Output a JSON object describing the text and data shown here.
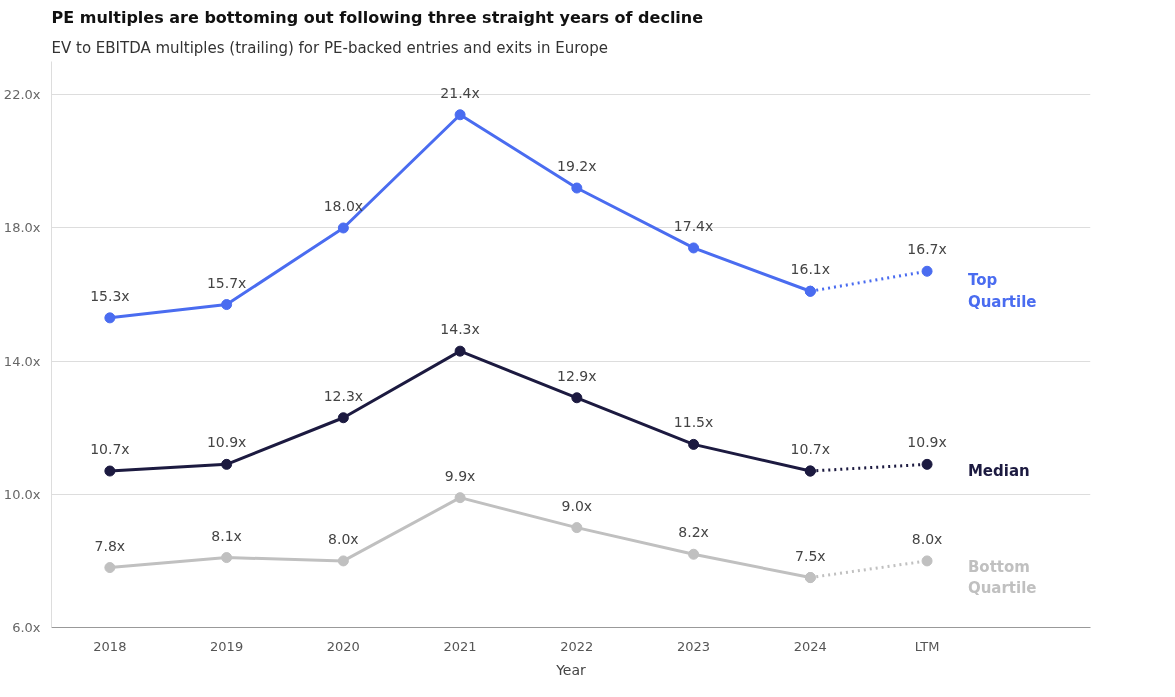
{
  "chart_data": {
    "type": "line",
    "title": "PE multiples are bottoming out following three straight years of decline",
    "subtitle": "EV to EBITDA multiples (trailing) for PE-backed entries and exits in Europe",
    "xlabel": "Year",
    "categories": [
      "2018",
      "2019",
      "2020",
      "2021",
      "2022",
      "2023",
      "2024",
      "LTM"
    ],
    "ylim": [
      6,
      23
    ],
    "yticks": [
      {
        "value": 6,
        "label": "6.0x"
      },
      {
        "value": 10,
        "label": "10.0x"
      },
      {
        "value": 14,
        "label": "14.0x"
      },
      {
        "value": 18,
        "label": "18.0x"
      },
      {
        "value": 22,
        "label": "22.0x"
      }
    ],
    "grid": "y",
    "legend": false,
    "marker": "circle",
    "series": [
      {
        "name": "Top Quartile",
        "color": "#4a6cf0",
        "line_style": "solid",
        "values": [
          15.3,
          15.7,
          18.0,
          21.4,
          19.2,
          17.4,
          16.1,
          null
        ],
        "value_labels": [
          "15.3x",
          "15.7x",
          "18.0x",
          "21.4x",
          "19.2x",
          "17.4x",
          "16.1x",
          null
        ]
      },
      {
        "color": "#4a6cf0",
        "line_style": "dotted",
        "values": [
          null,
          null,
          null,
          null,
          null,
          null,
          16.1,
          16.7
        ],
        "value_labels": [
          null,
          null,
          null,
          null,
          null,
          null,
          null,
          "16.7x"
        ]
      },
      {
        "name": "Median",
        "color": "#1c1a40",
        "line_style": "solid",
        "values": [
          10.7,
          10.9,
          12.3,
          14.3,
          12.9,
          11.5,
          10.7,
          null
        ],
        "value_labels": [
          "10.7x",
          "10.9x",
          "12.3x",
          "14.3x",
          "12.9x",
          "11.5x",
          "10.7x",
          null
        ]
      },
      {
        "color": "#1c1a40",
        "line_style": "dotted",
        "values": [
          null,
          null,
          null,
          null,
          null,
          null,
          10.7,
          10.9
        ],
        "value_labels": [
          null,
          null,
          null,
          null,
          null,
          null,
          null,
          "10.9x"
        ]
      },
      {
        "name": "Bottom Quartile",
        "color": "#c0c0c0",
        "line_style": "solid",
        "values": [
          7.8,
          8.1,
          8.0,
          9.9,
          9.0,
          8.2,
          7.5,
          null
        ],
        "value_labels": [
          "7.8x",
          "8.1x",
          "8.0x",
          "9.9x",
          "9.0x",
          "8.2x",
          "7.5x",
          null
        ]
      },
      {
        "color": "#c0c0c0",
        "line_style": "dotted",
        "values": [
          null,
          null,
          null,
          null,
          null,
          null,
          7.5,
          8.0
        ],
        "value_labels": [
          null,
          null,
          null,
          null,
          null,
          null,
          null,
          "8.0x"
        ]
      }
    ]
  }
}
